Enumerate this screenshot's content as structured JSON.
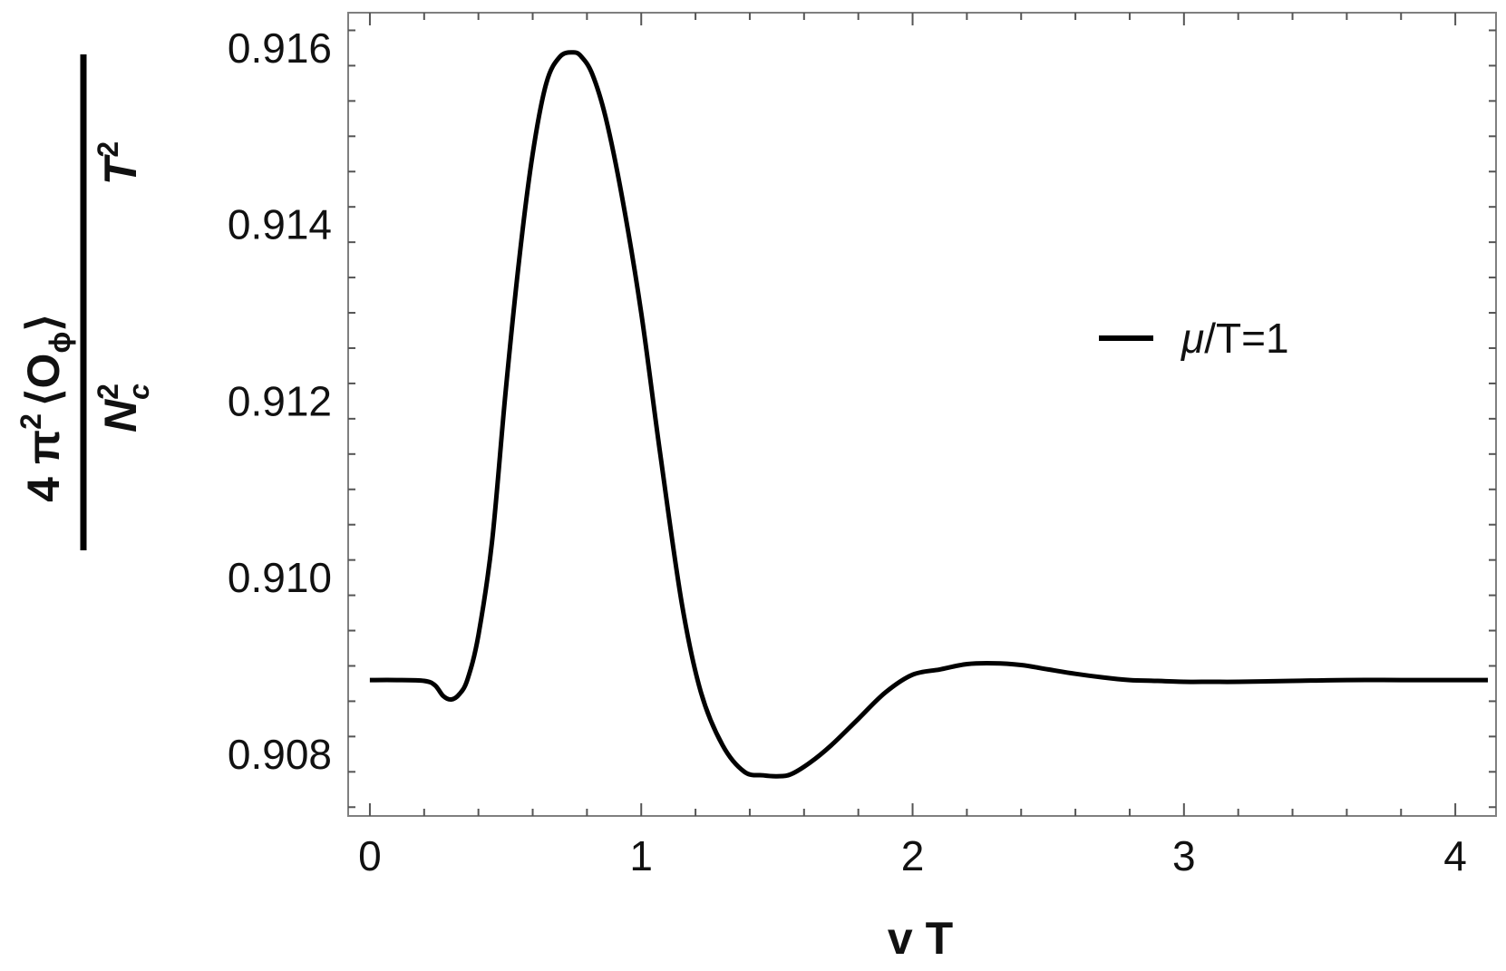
{
  "chart_data": {
    "type": "line",
    "xlabel": "v T",
    "ylabel": {
      "numerator_prefix": "4 π",
      "numerator_exp": "2",
      "numerator_op_open": "⟨O",
      "numerator_op_sub": "ϕ",
      "numerator_op_close": "⟩",
      "denominator_base": "N",
      "denominator_sup": "2",
      "denominator_sub": "c",
      "right_base": "T",
      "right_exp": "2"
    },
    "xlim": [
      -0.08,
      4.15
    ],
    "ylim": [
      0.9073,
      0.9164
    ],
    "x_ticks": [
      0,
      1,
      2,
      3,
      4
    ],
    "x_tick_labels": [
      "0",
      "1",
      "2",
      "3",
      "4"
    ],
    "y_ticks": [
      0.908,
      0.91,
      0.912,
      0.914,
      0.916
    ],
    "y_tick_labels": [
      "0.908",
      "0.910",
      "0.912",
      "0.914",
      "0.916"
    ],
    "legend_position": "right",
    "series": [
      {
        "name": "μ/T=1",
        "color": "#000000",
        "x": [
          0.0,
          0.1,
          0.2,
          0.24,
          0.27,
          0.3,
          0.33,
          0.36,
          0.4,
          0.45,
          0.5,
          0.55,
          0.6,
          0.65,
          0.7,
          0.75,
          0.78,
          0.82,
          0.87,
          0.93,
          1.0,
          1.07,
          1.15,
          1.22,
          1.3,
          1.38,
          1.45,
          1.5,
          1.55,
          1.62,
          1.7,
          1.8,
          1.9,
          2.0,
          2.1,
          2.2,
          2.3,
          2.4,
          2.5,
          2.6,
          2.7,
          2.8,
          2.9,
          3.0,
          3.1,
          3.2,
          3.4,
          3.6,
          3.8,
          4.0,
          4.12
        ],
        "y": [
          0.90884,
          0.90884,
          0.90883,
          0.90878,
          0.90866,
          0.90862,
          0.90868,
          0.90885,
          0.90935,
          0.9104,
          0.9121,
          0.9136,
          0.9148,
          0.9156,
          0.9159,
          0.91595,
          0.9159,
          0.9157,
          0.9152,
          0.9143,
          0.913,
          0.9114,
          0.9097,
          0.9087,
          0.9081,
          0.9078,
          0.90776,
          0.90775,
          0.90777,
          0.9079,
          0.9081,
          0.9084,
          0.9087,
          0.9089,
          0.90896,
          0.90902,
          0.90903,
          0.90901,
          0.90896,
          0.90891,
          0.90887,
          0.90884,
          0.90883,
          0.90882,
          0.90882,
          0.90882,
          0.90883,
          0.90884,
          0.90884,
          0.90884,
          0.90884
        ]
      }
    ]
  }
}
